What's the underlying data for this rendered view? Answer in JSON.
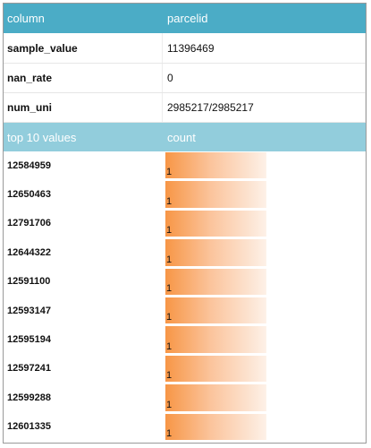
{
  "header": {
    "col1": "column",
    "col2": "parcelid"
  },
  "meta_rows": [
    {
      "label": "sample_value",
      "value": "11396469"
    },
    {
      "label": "nan_rate",
      "value": "0"
    },
    {
      "label": "num_uni",
      "value": "2985217/2985217"
    }
  ],
  "top_header": {
    "col1": "top 10 values",
    "col2": "count"
  },
  "top_values": [
    {
      "value": "12584959",
      "count": "1",
      "fraction": 1.0
    },
    {
      "value": "12650463",
      "count": "1",
      "fraction": 1.0
    },
    {
      "value": "12791706",
      "count": "1",
      "fraction": 1.0
    },
    {
      "value": "12644322",
      "count": "1",
      "fraction": 1.0
    },
    {
      "value": "12591100",
      "count": "1",
      "fraction": 1.0
    },
    {
      "value": "12593147",
      "count": "1",
      "fraction": 1.0
    },
    {
      "value": "12595194",
      "count": "1",
      "fraction": 1.0
    },
    {
      "value": "12597241",
      "count": "1",
      "fraction": 1.0
    },
    {
      "value": "12599288",
      "count": "1",
      "fraction": 1.0
    },
    {
      "value": "12601335",
      "count": "1",
      "fraction": 1.0
    }
  ],
  "colors": {
    "header_bg": "#4bacc6",
    "subheader_bg": "#92cddc",
    "bar_start": "#f79646"
  }
}
